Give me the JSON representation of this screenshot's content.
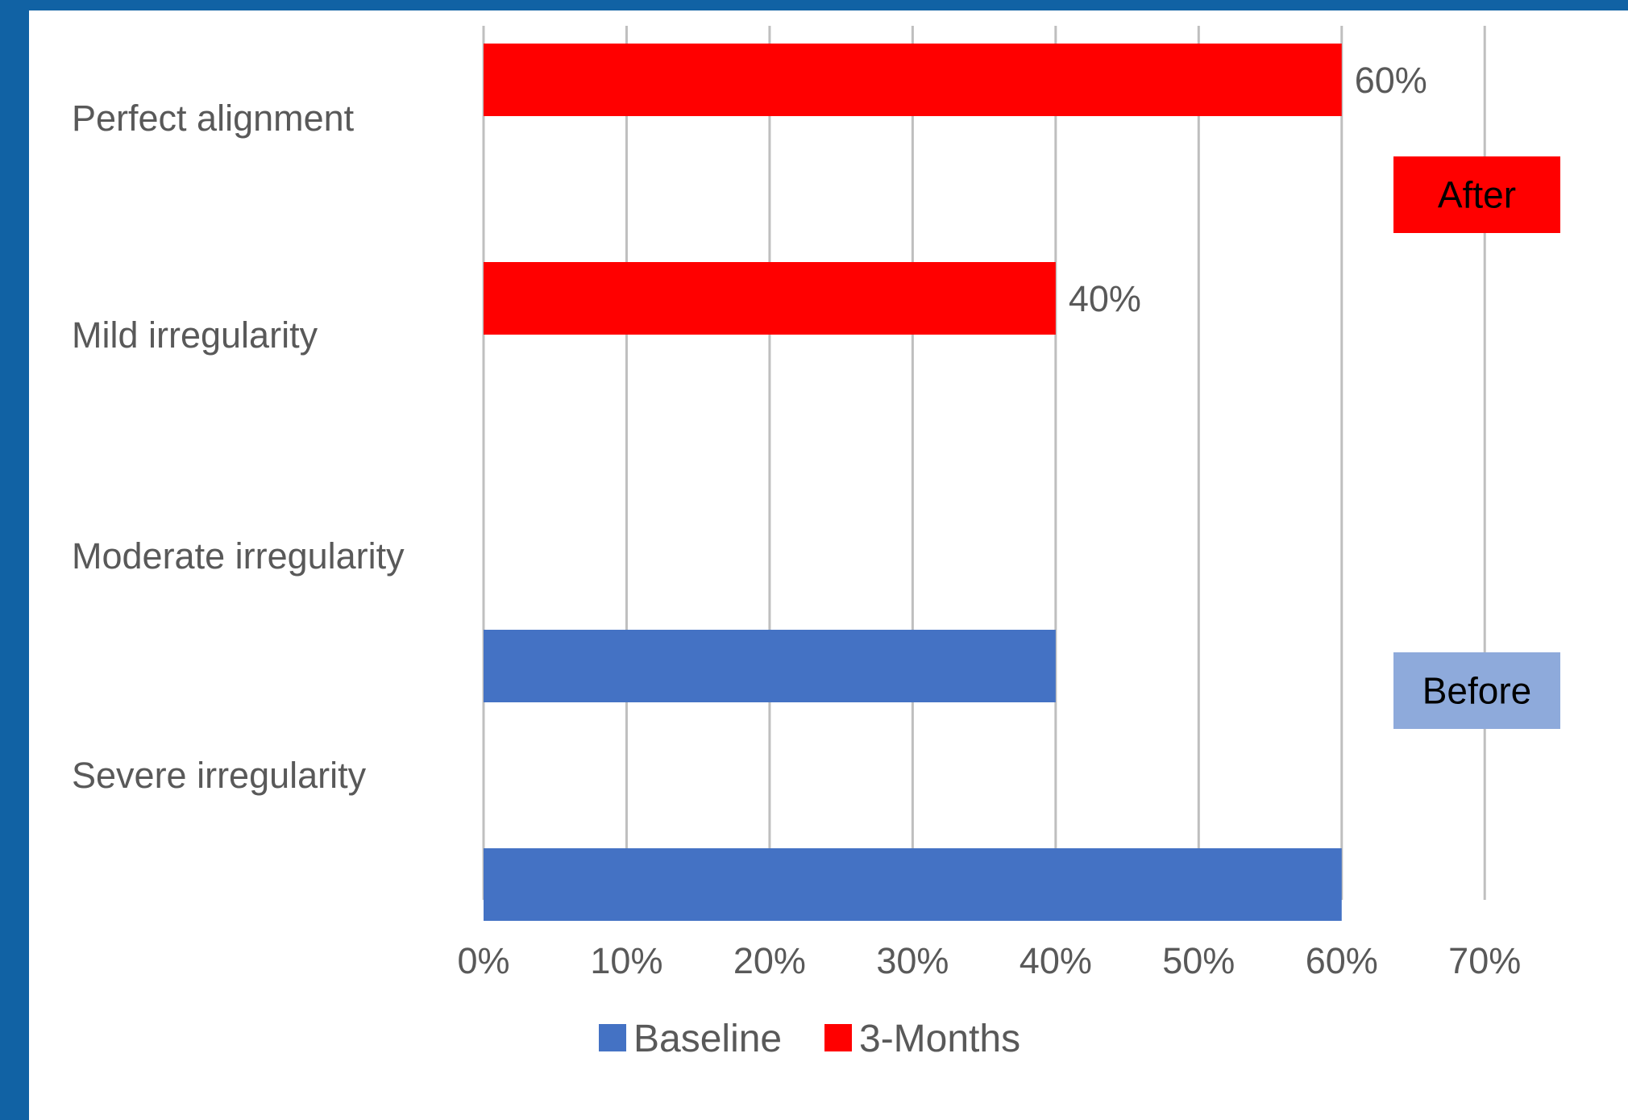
{
  "chart_data": {
    "type": "bar",
    "orientation": "horizontal",
    "categories": [
      "Perfect alignment",
      "Mild irregularity",
      "Moderate irregularity",
      "Severe irregularity"
    ],
    "series": [
      {
        "name": "Baseline",
        "color": "#4472c4",
        "values": [
          0,
          0,
          40,
          60
        ]
      },
      {
        "name": "3-Months",
        "color": "#ff0000",
        "values": [
          60,
          40,
          0,
          0
        ]
      }
    ],
    "data_labels": [
      {
        "category": "Perfect alignment",
        "series": "3-Months",
        "text": "60%"
      },
      {
        "category": "Mild irregularity",
        "series": "3-Months",
        "text": "40%"
      }
    ],
    "xlim": [
      0,
      70
    ],
    "xticks": [
      0,
      10,
      20,
      30,
      40,
      50,
      60,
      70
    ],
    "xtick_labels": [
      "0%",
      "10%",
      "20%",
      "30%",
      "40%",
      "50%",
      "60%",
      "70%"
    ],
    "grid": "vertical",
    "legend": {
      "position": "bottom",
      "entries": [
        "Baseline",
        "3-Months"
      ]
    },
    "annotations": [
      {
        "text": "After",
        "color": "#ff0000"
      },
      {
        "text": "Before",
        "color": "#8eaadb"
      }
    ]
  }
}
